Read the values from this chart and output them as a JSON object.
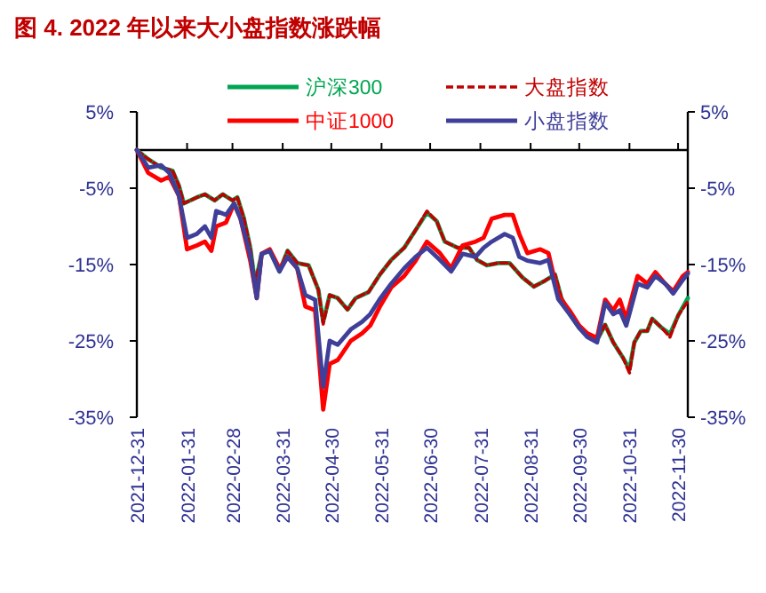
{
  "chart_data": {
    "type": "line",
    "title": "图 4. 2022 年以来大小盘指数涨跌幅",
    "legend": "top",
    "grid": false,
    "xlim": [
      "2021-12-31",
      "2022-12-06"
    ],
    "xticks": [
      {
        "value": "2021-12-31",
        "label": "2021-12-31"
      },
      {
        "value": "2022-01-31",
        "label": "2022-01-31"
      },
      {
        "value": "2022-02-28",
        "label": "2022-02-28"
      },
      {
        "value": "2022-03-31",
        "label": "2022-03-31"
      },
      {
        "value": "2022-04-30",
        "label": "2022-04-30"
      },
      {
        "value": "2022-05-31",
        "label": "2022-05-31"
      },
      {
        "value": "2022-06-30",
        "label": "2022-06-30"
      },
      {
        "value": "2022-07-31",
        "label": "2022-07-31"
      },
      {
        "value": "2022-08-31",
        "label": "2022-08-31"
      },
      {
        "value": "2022-09-30",
        "label": "2022-09-30"
      },
      {
        "value": "2022-10-31",
        "label": "2022-10-31"
      },
      {
        "value": "2022-11-30",
        "label": "2022-11-30"
      }
    ],
    "ylim": [
      -35,
      5
    ],
    "yticks": [
      {
        "value": -35,
        "label": "-35%"
      },
      {
        "value": -25,
        "label": "-25%"
      },
      {
        "value": -15,
        "label": "-15%"
      },
      {
        "value": -5,
        "label": "-5%"
      },
      {
        "value": 5,
        "label": "5%"
      }
    ],
    "y2lim": [
      -35,
      5
    ],
    "y2ticks": [
      {
        "value": -35,
        "label": "-35%"
      },
      {
        "value": -25,
        "label": "-25%"
      },
      {
        "value": -15,
        "label": "-15%"
      },
      {
        "value": -5,
        "label": "-5%"
      },
      {
        "value": 5,
        "label": "5%"
      }
    ],
    "series": [
      {
        "name": "沪深300",
        "color": "#00a651",
        "line_style": "solid",
        "x": [
          "2021-12-31",
          "2022-01-07",
          "2022-01-15",
          "2022-01-22",
          "2022-01-26",
          "2022-01-29",
          "2022-02-06",
          "2022-02-11",
          "2022-02-17",
          "2022-02-22",
          "2022-02-28",
          "2022-03-03",
          "2022-03-07",
          "2022-03-11",
          "2022-03-14",
          "2022-03-18",
          "2022-03-23",
          "2022-03-29",
          "2022-04-03",
          "2022-04-09",
          "2022-04-16",
          "2022-04-22",
          "2022-04-25",
          "2022-04-29",
          "2022-05-04",
          "2022-05-10",
          "2022-05-15",
          "2022-05-23",
          "2022-05-30",
          "2022-06-06",
          "2022-06-14",
          "2022-06-21",
          "2022-06-28",
          "2022-07-04",
          "2022-07-09",
          "2022-07-17",
          "2022-07-24",
          "2022-07-29",
          "2022-08-04",
          "2022-08-11",
          "2022-08-18",
          "2022-08-26",
          "2022-09-02",
          "2022-09-09",
          "2022-09-15",
          "2022-09-19",
          "2022-09-24",
          "2022-09-30",
          "2022-10-05",
          "2022-10-11",
          "2022-10-16",
          "2022-10-21",
          "2022-10-27",
          "2022-10-31",
          "2022-11-03",
          "2022-11-07",
          "2022-11-11",
          "2022-11-14",
          "2022-11-20",
          "2022-11-25",
          "2022-11-30",
          "2022-12-06"
        ],
        "values": [
          0,
          -1.2,
          -2.3,
          -2.7,
          -4.7,
          -7,
          -6.2,
          -5.8,
          -6.6,
          -5.8,
          -6.6,
          -6.2,
          -8.9,
          -12.8,
          -17.5,
          -13.6,
          -13.2,
          -15.9,
          -13.2,
          -14.8,
          -15.1,
          -18.3,
          -22.5,
          -19,
          -19.4,
          -20.9,
          -19.4,
          -18.6,
          -16.3,
          -14.4,
          -12.8,
          -10.5,
          -8.2,
          -9.3,
          -12,
          -12.8,
          -12.8,
          -14.4,
          -15.1,
          -14.8,
          -14.8,
          -16.7,
          -17.9,
          -17.1,
          -16.3,
          -19.4,
          -21.4,
          -23.3,
          -24.1,
          -24.9,
          -22.9,
          -25.2,
          -27.2,
          -28.7,
          -25.2,
          -23.7,
          -23.7,
          -22.1,
          -23.3,
          -24.1,
          -21.7,
          -19.4
        ]
      },
      {
        "name": "大盘指数",
        "color": "#c00000",
        "line_style": "dashed",
        "x": [
          "2021-12-31",
          "2022-01-07",
          "2022-01-15",
          "2022-01-22",
          "2022-01-26",
          "2022-01-29",
          "2022-02-06",
          "2022-02-11",
          "2022-02-17",
          "2022-02-22",
          "2022-02-28",
          "2022-03-03",
          "2022-03-07",
          "2022-03-11",
          "2022-03-14",
          "2022-03-18",
          "2022-03-23",
          "2022-03-29",
          "2022-04-03",
          "2022-04-09",
          "2022-04-16",
          "2022-04-22",
          "2022-04-25",
          "2022-04-29",
          "2022-05-04",
          "2022-05-10",
          "2022-05-15",
          "2022-05-23",
          "2022-05-30",
          "2022-06-06",
          "2022-06-14",
          "2022-06-21",
          "2022-06-28",
          "2022-07-04",
          "2022-07-09",
          "2022-07-17",
          "2022-07-24",
          "2022-07-29",
          "2022-08-04",
          "2022-08-11",
          "2022-08-18",
          "2022-08-26",
          "2022-09-02",
          "2022-09-09",
          "2022-09-15",
          "2022-09-19",
          "2022-09-24",
          "2022-09-30",
          "2022-10-05",
          "2022-10-11",
          "2022-10-16",
          "2022-10-21",
          "2022-10-27",
          "2022-10-31",
          "2022-11-03",
          "2022-11-07",
          "2022-11-11",
          "2022-11-14",
          "2022-11-20",
          "2022-11-25",
          "2022-11-30",
          "2022-12-06"
        ],
        "values": [
          0,
          -1.2,
          -2.3,
          -2.7,
          -4.7,
          -7,
          -6.2,
          -5.8,
          -6.6,
          -5.8,
          -6.6,
          -6.2,
          -8.9,
          -12.8,
          -17.5,
          -13.6,
          -13.2,
          -15.9,
          -13.2,
          -14.8,
          -15.1,
          -18.3,
          -22.8,
          -19,
          -19.4,
          -20.9,
          -19.4,
          -18.6,
          -16.3,
          -14.4,
          -12.8,
          -10.5,
          -8,
          -9.3,
          -12,
          -12.8,
          -12.8,
          -14.4,
          -15.1,
          -14.8,
          -14.8,
          -16.7,
          -17.9,
          -17.1,
          -16.3,
          -19.4,
          -21.4,
          -23.3,
          -24.1,
          -24.9,
          -22.9,
          -25.2,
          -27.2,
          -29.2,
          -25.2,
          -23.7,
          -23.7,
          -22.1,
          -23.3,
          -24.5,
          -21.7,
          -19.8
        ]
      },
      {
        "name": "中证1000",
        "color": "#ff0000",
        "line_style": "solid",
        "x": [
          "2021-12-31",
          "2022-01-07",
          "2022-01-15",
          "2022-01-20",
          "2022-01-26",
          "2022-01-31",
          "2022-02-06",
          "2022-02-11",
          "2022-02-15",
          "2022-02-18",
          "2022-02-24",
          "2022-03-01",
          "2022-03-05",
          "2022-03-11",
          "2022-03-15",
          "2022-03-18",
          "2022-03-23",
          "2022-03-29",
          "2022-04-03",
          "2022-04-09",
          "2022-04-14",
          "2022-04-20",
          "2022-04-25",
          "2022-04-29",
          "2022-05-04",
          "2022-05-12",
          "2022-05-19",
          "2022-05-24",
          "2022-05-30",
          "2022-06-06",
          "2022-06-14",
          "2022-06-21",
          "2022-06-28",
          "2022-07-06",
          "2022-07-13",
          "2022-07-20",
          "2022-07-28",
          "2022-08-02",
          "2022-08-07",
          "2022-08-15",
          "2022-08-20",
          "2022-08-24",
          "2022-08-29",
          "2022-09-06",
          "2022-09-11",
          "2022-09-17",
          "2022-09-24",
          "2022-09-30",
          "2022-10-05",
          "2022-10-11",
          "2022-10-16",
          "2022-10-21",
          "2022-10-25",
          "2022-10-29",
          "2022-11-05",
          "2022-11-11",
          "2022-11-16",
          "2022-11-22",
          "2022-11-27",
          "2022-12-03",
          "2022-12-06"
        ],
        "values": [
          0,
          -3,
          -4,
          -3.5,
          -6,
          -13,
          -12.5,
          -12,
          -13.2,
          -10,
          -9.5,
          -7,
          -9,
          -14.5,
          -19.4,
          -13.6,
          -13,
          -15.5,
          -14,
          -15.5,
          -20.5,
          -21,
          -34,
          -28,
          -27.5,
          -25,
          -24,
          -23,
          -20.5,
          -18,
          -16.5,
          -14.5,
          -12,
          -13.5,
          -15.5,
          -12.5,
          -12,
          -11.5,
          -9,
          -8.5,
          -8.5,
          -11,
          -13.5,
          -13,
          -13.5,
          -19,
          -21,
          -23,
          -24,
          -24.6,
          -19.6,
          -21,
          -19.6,
          -22.1,
          -16.5,
          -17.5,
          -16,
          -17.5,
          -18.5,
          -16.5,
          -16
        ]
      },
      {
        "name": "小盘指数",
        "color": "#3f3f99",
        "line_style": "solid",
        "x": [
          "2021-12-31",
          "2022-01-07",
          "2022-01-15",
          "2022-01-20",
          "2022-01-26",
          "2022-01-31",
          "2022-02-06",
          "2022-02-11",
          "2022-02-15",
          "2022-02-18",
          "2022-02-24",
          "2022-03-01",
          "2022-03-05",
          "2022-03-11",
          "2022-03-15",
          "2022-03-18",
          "2022-03-23",
          "2022-03-29",
          "2022-04-03",
          "2022-04-09",
          "2022-04-14",
          "2022-04-20",
          "2022-04-25",
          "2022-04-29",
          "2022-05-04",
          "2022-05-12",
          "2022-05-19",
          "2022-05-24",
          "2022-05-30",
          "2022-06-06",
          "2022-06-14",
          "2022-06-21",
          "2022-06-28",
          "2022-07-06",
          "2022-07-13",
          "2022-07-20",
          "2022-07-28",
          "2022-08-02",
          "2022-08-07",
          "2022-08-15",
          "2022-08-20",
          "2022-08-24",
          "2022-08-29",
          "2022-09-06",
          "2022-09-11",
          "2022-09-17",
          "2022-09-24",
          "2022-09-30",
          "2022-10-05",
          "2022-10-11",
          "2022-10-16",
          "2022-10-21",
          "2022-10-25",
          "2022-10-29",
          "2022-11-05",
          "2022-11-11",
          "2022-11-16",
          "2022-11-22",
          "2022-11-27",
          "2022-12-03",
          "2022-12-06"
        ],
        "values": [
          0,
          -2.3,
          -2,
          -3,
          -6,
          -11.5,
          -11,
          -10,
          -11.5,
          -8,
          -8.5,
          -7,
          -9,
          -13.8,
          -19.4,
          -13.6,
          -13.2,
          -15.9,
          -14,
          -15.5,
          -19,
          -19.6,
          -31,
          -25,
          -25.5,
          -23.5,
          -22.5,
          -21.5,
          -19.5,
          -17.5,
          -15.5,
          -14,
          -12.8,
          -14.4,
          -15.9,
          -13.6,
          -14,
          -12.8,
          -12,
          -11,
          -11.5,
          -14,
          -14.5,
          -14.8,
          -14.4,
          -19.5,
          -21.5,
          -23.3,
          -24.5,
          -25.2,
          -20,
          -21.5,
          -21,
          -23,
          -17.5,
          -18,
          -16.5,
          -17.5,
          -18.8,
          -17,
          -16.2
        ]
      }
    ]
  }
}
